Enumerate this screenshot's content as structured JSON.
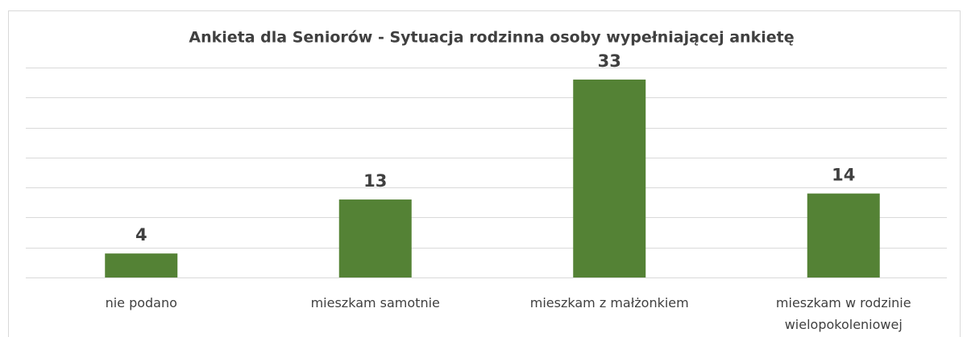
{
  "chart_data": {
    "type": "bar",
    "title": "Ankieta dla Seniorów - Sytuacja rodzinna osoby wypełniającej ankietę",
    "categories": [
      "nie podano",
      "mieszkam samotnie",
      "mieszkam z małżonkiem",
      "mieszkam w rodzinie wielopokoleniowej"
    ],
    "values": [
      4,
      13,
      33,
      14
    ],
    "color": "#548235",
    "ylim": [
      0,
      35
    ],
    "yticks": [
      0,
      5,
      10,
      15,
      20,
      25,
      30,
      35
    ],
    "grid": true
  }
}
